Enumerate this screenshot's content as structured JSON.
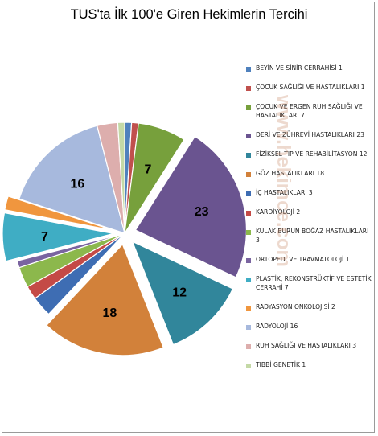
{
  "chart_data": {
    "type": "pie",
    "title": "TUS'ta İlk 100'e Giren Hekimlerin Tercihi",
    "legend_position": "right",
    "slices": [
      {
        "label": "BEYİN VE SİNİR CERRAHİSİ 1",
        "value": 1,
        "color": "#4F81BD",
        "exploded": false
      },
      {
        "label": "ÇOCUK SAĞLIĞI VE HASTALIKLARI 1",
        "value": 1,
        "color": "#C0504D",
        "exploded": false
      },
      {
        "label": "ÇOCUK VE ERGEN RUH SAĞLIĞI VE HASTALIKLARI 7",
        "value": 7,
        "color": "#77A03C",
        "exploded": false
      },
      {
        "label": "DERİ VE ZÜHREVİ HASTALIKLARI 23",
        "value": 23,
        "color": "#6A5490",
        "exploded": true
      },
      {
        "label": "FİZİKSEL TIP VE REHABİLİTASYON 12",
        "value": 12,
        "color": "#31869B",
        "exploded": true
      },
      {
        "label": "GÖZ HASTALIKLARI 18",
        "value": 18,
        "color": "#D2813A",
        "exploded": true
      },
      {
        "label": "İÇ HASTALIKLARI 3",
        "value": 3,
        "color": "#3E6DB3",
        "exploded": false
      },
      {
        "label": "KARDİYOLOJİ 2",
        "value": 2,
        "color": "#C44A46",
        "exploded": false
      },
      {
        "label": "KULAK BURUN BOĞAZ HASTALIKLARI 3",
        "value": 3,
        "color": "#8CB84C",
        "exploded": false
      },
      {
        "label": "ORTOPEDİ VE TRAVMATOLOJİ 1",
        "value": 1,
        "color": "#7A64A0",
        "exploded": false
      },
      {
        "label": "PLASTİK, REKONSTRÜKTİF VE ESTETİK CERRAHİ 7",
        "value": 7,
        "color": "#3FADC4",
        "exploded": true
      },
      {
        "label": "RADYASYON ONKOLOJİSİ 2",
        "value": 2,
        "color": "#F0963E",
        "exploded": true
      },
      {
        "label": "RADYOLOJİ 16",
        "value": 16,
        "color": "#A7B9DD",
        "exploded": false
      },
      {
        "label": "RUH SAĞLIĞI VE HASTALIKLARI 3",
        "value": 3,
        "color": "#DDAEAD",
        "exploded": false
      },
      {
        "label": "TIBBİ GENETİK 1",
        "value": 1,
        "color": "#C4D9A6",
        "exploded": false
      }
    ],
    "data_labels": [
      "7",
      "23",
      "12",
      "18",
      "7",
      "16"
    ]
  },
  "watermark": "www.hekimce.com"
}
